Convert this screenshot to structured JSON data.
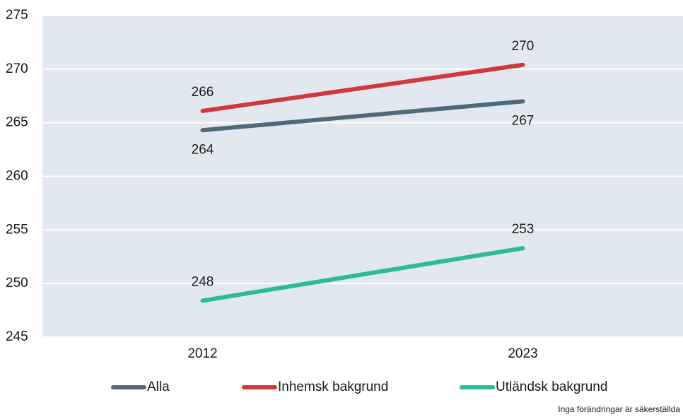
{
  "chart_data": {
    "type": "line",
    "categories": [
      "2012",
      "2023"
    ],
    "series": [
      {
        "name": "Alla",
        "color": "#4f6a7b",
        "values": [
          264.3,
          267.0
        ],
        "value_labels": [
          "264",
          "267"
        ]
      },
      {
        "name": "Inhemsk bakgrund",
        "color": "#d0393a",
        "values": [
          266.1,
          270.4
        ],
        "value_labels": [
          "266",
          "270"
        ]
      },
      {
        "name": "Utländsk bakgrund",
        "color": "#2bbb96",
        "values": [
          248.4,
          253.3
        ],
        "value_labels": [
          "248",
          "253"
        ]
      }
    ],
    "ylim": [
      245,
      275
    ],
    "yticks": [
      245,
      250,
      255,
      260,
      265,
      270,
      275
    ],
    "grid": true,
    "legend": "bottom",
    "annotation": "Inga förändringar är säkerställda"
  }
}
